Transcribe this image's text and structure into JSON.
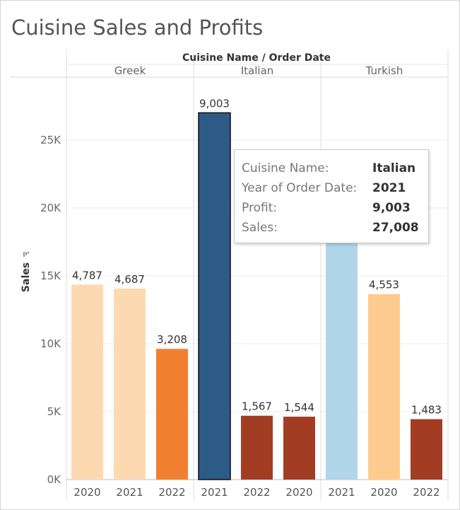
{
  "title": "Cuisine Sales and Profits",
  "colors": {
    "light_orange": "#FDD9B1",
    "orange": "#F08030",
    "pale_orange": "#FDCB8E",
    "dark_red": "#A23D23",
    "dark_blue": "#2C5B88",
    "light_blue": "#B0D6EA"
  },
  "chart_data": {
    "type": "bar",
    "column_header": "Cuisine Name  /  Order Date",
    "ylabel": "Sales",
    "ylim": [
      0,
      30000
    ],
    "yticks": [
      "0K",
      "5K",
      "10K",
      "15K",
      "20K",
      "25K"
    ],
    "grid": true,
    "groups": [
      {
        "name": "Greek",
        "bars": [
          {
            "year": "2020",
            "sales": 14361,
            "profit": "4,787",
            "color": "#FDD9B1"
          },
          {
            "year": "2021",
            "sales": 14061,
            "profit": "4,687",
            "color": "#FDD9B1"
          },
          {
            "year": "2022",
            "sales": 9624,
            "profit": "3,208",
            "color": "#F08030"
          }
        ]
      },
      {
        "name": "Italian",
        "bars": [
          {
            "year": "2021",
            "sales": 27008,
            "profit": "9,003",
            "color": "#2C5B88",
            "selected": true
          },
          {
            "year": "2022",
            "sales": 4701,
            "profit": "1,567",
            "color": "#A23D23"
          },
          {
            "year": "2020",
            "sales": 4632,
            "profit": "1,544",
            "color": "#A23D23"
          }
        ]
      },
      {
        "name": "Turkish",
        "bars": [
          {
            "year": "2021",
            "sales": 18000,
            "profit": "",
            "color": "#B0D6EA"
          },
          {
            "year": "2020",
            "sales": 13659,
            "profit": "4,553",
            "color": "#FDCB8E"
          },
          {
            "year": "2022",
            "sales": 4449,
            "profit": "1,483",
            "color": "#A23D23"
          }
        ]
      }
    ]
  },
  "tooltip": {
    "rows": [
      {
        "key": "Cuisine Name:",
        "value": "Italian"
      },
      {
        "key": "Year of Order Date:",
        "value": "2021"
      },
      {
        "key": "Profit:",
        "value": "9,003"
      },
      {
        "key": "Sales:",
        "value": "27,008"
      }
    ]
  }
}
